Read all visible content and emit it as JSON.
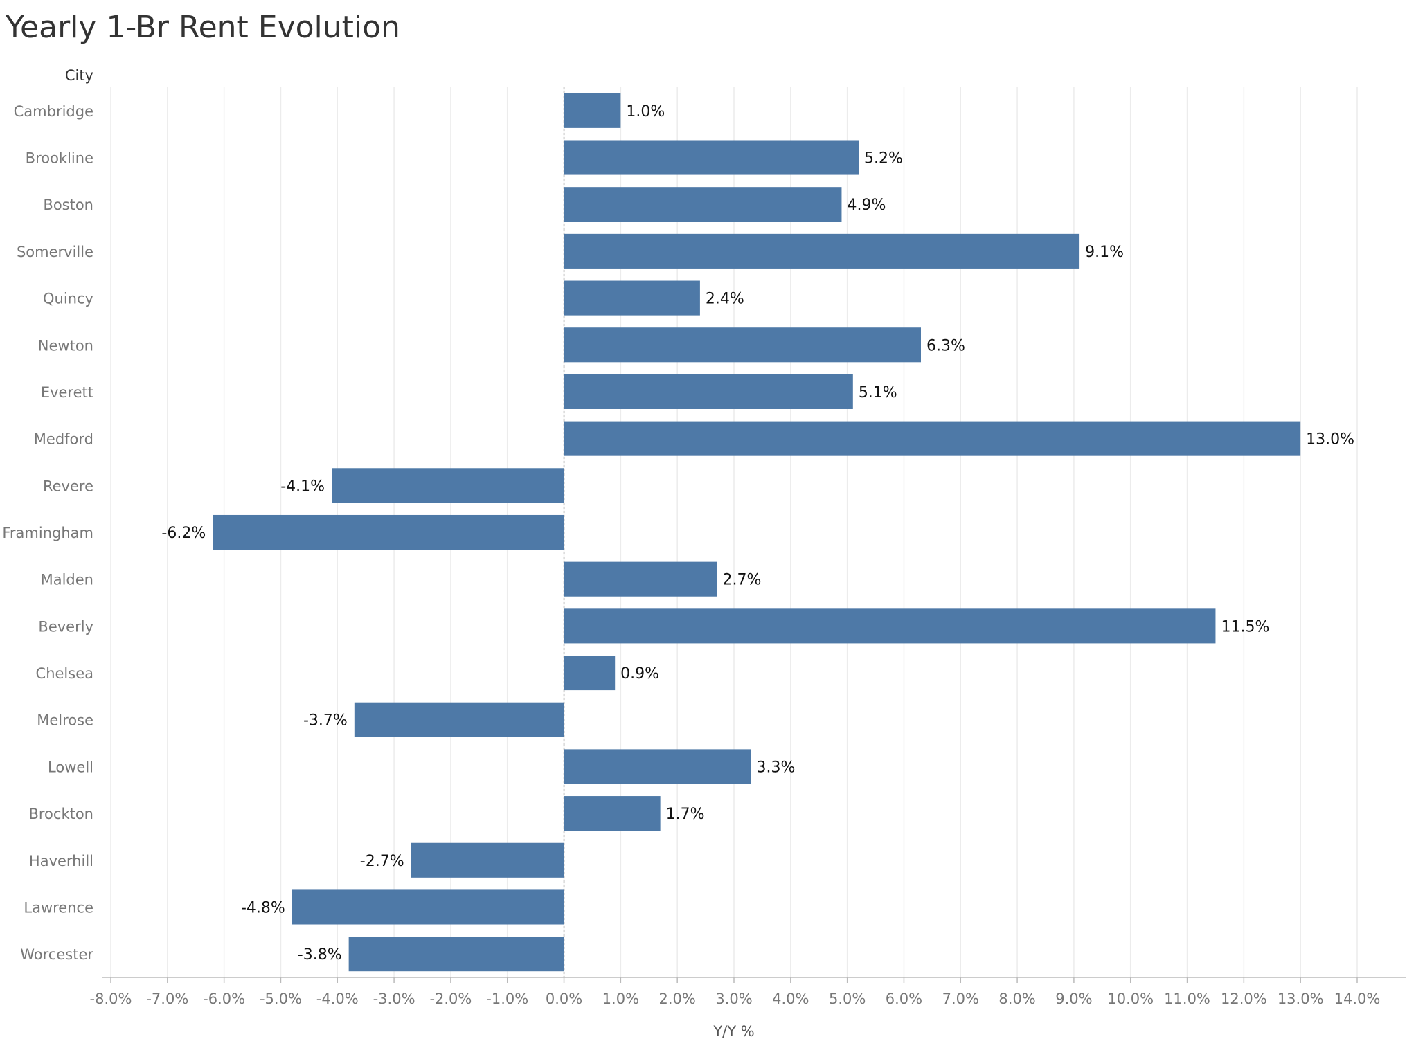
{
  "chart_data": {
    "type": "bar",
    "orientation": "horizontal",
    "title": "Yearly 1-Br Rent Evolution",
    "row_header": "City",
    "xlabel": "Y/Y %",
    "xlim": [
      -8,
      14
    ],
    "x_ticks": [
      "-8.0%",
      "-7.0%",
      "-6.0%",
      "-5.0%",
      "-4.0%",
      "-3.0%",
      "-2.0%",
      "-1.0%",
      "0.0%",
      "1.0%",
      "2.0%",
      "3.0%",
      "4.0%",
      "5.0%",
      "6.0%",
      "7.0%",
      "8.0%",
      "9.0%",
      "10.0%",
      "11.0%",
      "12.0%",
      "13.0%",
      "14.0%"
    ],
    "grid": true,
    "bar_color": "#4e79a7",
    "categories": [
      "Cambridge",
      "Brookline",
      "Boston",
      "Somerville",
      "Quincy",
      "Newton",
      "Everett",
      "Medford",
      "Revere",
      "Framingham",
      "Malden",
      "Beverly",
      "Chelsea",
      "Melrose",
      "Lowell",
      "Brockton",
      "Haverhill",
      "Lawrence",
      "Worcester"
    ],
    "values": [
      1.0,
      5.2,
      4.9,
      9.1,
      2.4,
      6.3,
      5.1,
      13.0,
      -4.1,
      -6.2,
      2.7,
      11.5,
      0.9,
      -3.7,
      3.3,
      1.7,
      -2.7,
      -4.8,
      -3.8
    ],
    "value_labels": [
      "1.0%",
      "5.2%",
      "4.9%",
      "9.1%",
      "2.4%",
      "6.3%",
      "5.1%",
      "13.0%",
      "-4.1%",
      "-6.2%",
      "2.7%",
      "11.5%",
      "0.9%",
      "-3.7%",
      "3.3%",
      "1.7%",
      "-2.7%",
      "-4.8%",
      "-3.8%"
    ]
  }
}
